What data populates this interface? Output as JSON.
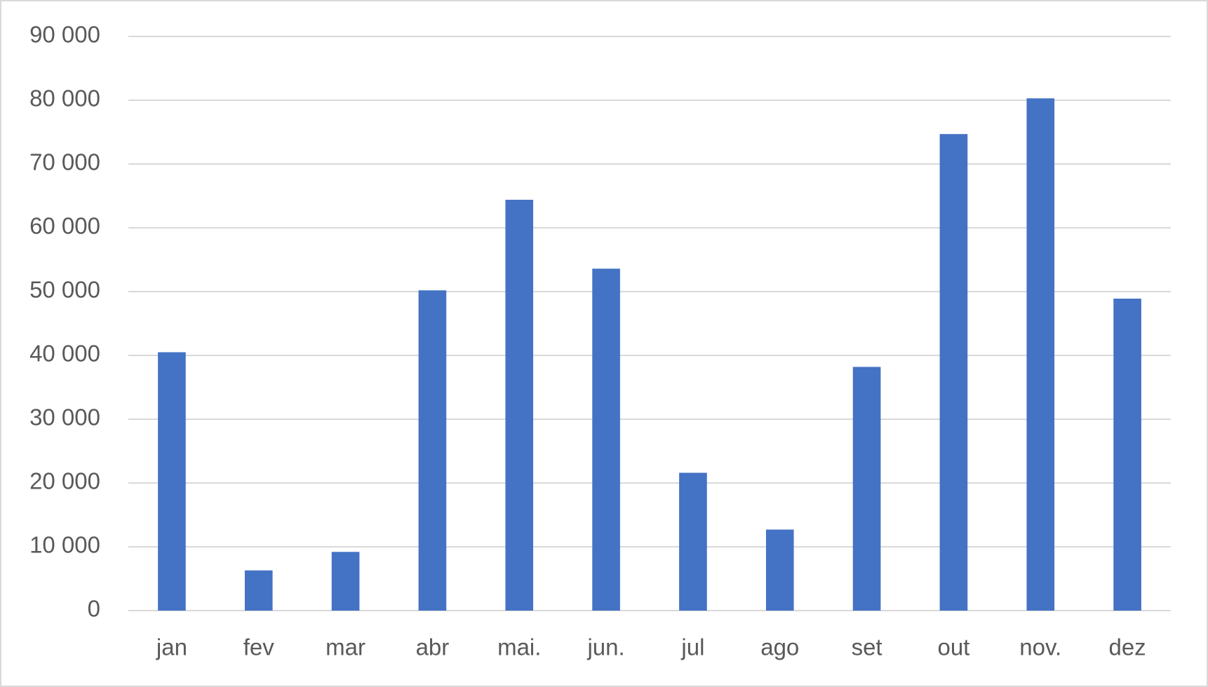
{
  "chart_data": {
    "type": "bar",
    "categories": [
      "jan",
      "fev",
      "mar",
      "abr",
      "mai.",
      "jun.",
      "jul",
      "ago",
      "set",
      "out",
      "nov.",
      "dez"
    ],
    "values": [
      40500,
      6300,
      9200,
      50200,
      64400,
      53600,
      21600,
      12700,
      38200,
      74700,
      80300,
      48900
    ],
    "color": "#4472c4",
    "ylim": [
      0,
      90000
    ],
    "yticks": [
      0,
      {
        "value": 10000,
        "label": "10 000"
      },
      {
        "value": 20000,
        "label": "20 000"
      },
      {
        "value": 30000,
        "label": "30 000"
      },
      {
        "value": 40000,
        "label": "40 000"
      },
      {
        "value": 50000,
        "label": "50 000"
      },
      {
        "value": 60000,
        "label": "60 000"
      },
      {
        "value": 70000,
        "label": "70 000"
      },
      {
        "value": 80000,
        "label": "80 000"
      },
      {
        "value": 90000,
        "label": "90 000"
      }
    ],
    "grid": true
  }
}
